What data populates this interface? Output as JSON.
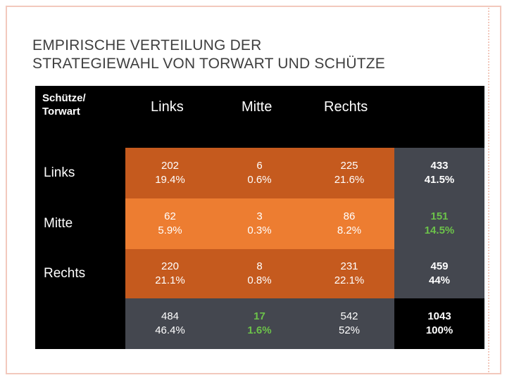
{
  "title": {
    "line1": "EMPIRISCHE VERTEILUNG DER",
    "line2": "STRATEGIEWAHL VON TORWART UND SCHÜTZE"
  },
  "table": {
    "corner_line1": "Schütze/",
    "corner_line2": "Torwart",
    "columns": [
      "Links",
      "Mitte",
      "Rechts"
    ],
    "rows": [
      {
        "label": "Links",
        "cells": [
          {
            "count": "202",
            "pct": "19.4%"
          },
          {
            "count": "6",
            "pct": "0.6%"
          },
          {
            "count": "225",
            "pct": "21.6%"
          }
        ],
        "total": {
          "count": "433",
          "pct": "41.5%"
        }
      },
      {
        "label": "Mitte",
        "cells": [
          {
            "count": "62",
            "pct": "5.9%"
          },
          {
            "count": "3",
            "pct": "0.3%"
          },
          {
            "count": "86",
            "pct": "8.2%"
          }
        ],
        "total": {
          "count": "151",
          "pct": "14.5%"
        }
      },
      {
        "label": "Rechts",
        "cells": [
          {
            "count": "220",
            "pct": "21.1%"
          },
          {
            "count": "8",
            "pct": "0.8%"
          },
          {
            "count": "231",
            "pct": "22.1%"
          }
        ],
        "total": {
          "count": "459",
          "pct": "44%"
        }
      }
    ],
    "column_totals": [
      {
        "count": "484",
        "pct": "46.4%"
      },
      {
        "count": "17",
        "pct": "1.6%"
      },
      {
        "count": "542",
        "pct": "52%"
      }
    ],
    "grand_total": {
      "count": "1043",
      "pct": "100%"
    }
  },
  "colors": {
    "dark_orange": "#c55a1e",
    "light_orange": "#ed7d31",
    "slate": "#44474f",
    "highlight_green": "#6cc24a"
  }
}
